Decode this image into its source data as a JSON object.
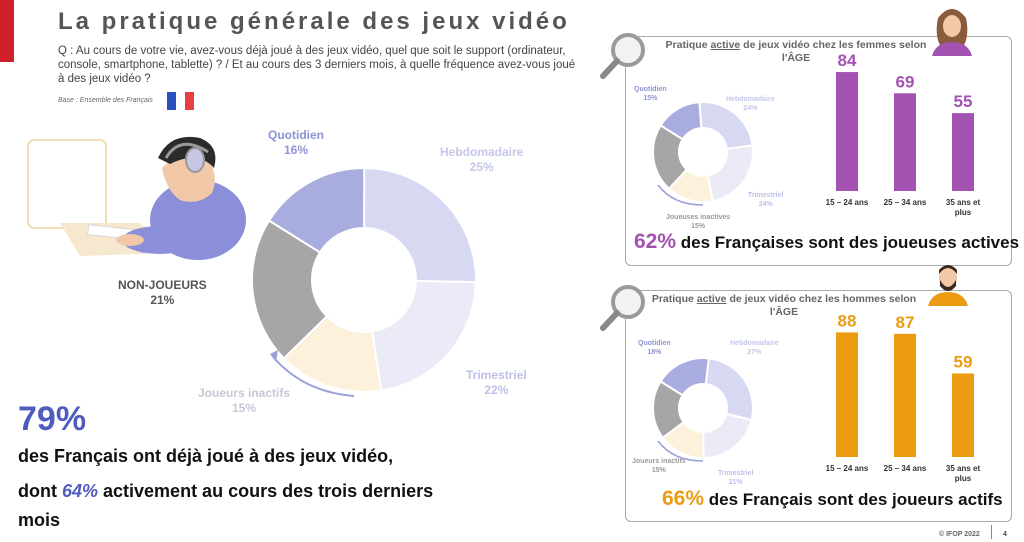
{
  "header": {
    "title": "La pratique générale des jeux vidéo",
    "question": "Q : Au cours de votre vie, avez-vous déjà joué à des jeux vidéo, quel que soit le support (ordinateur, console, smartphone, tablette) ? / Et au cours des 3 derniers mois, à quelle fréquence avez-vous joué à des jeux vidéo ?",
    "base": "Base : Ensemble des Français"
  },
  "nonplayers": {
    "label": "NON-JOUEURS",
    "value": "21%"
  },
  "main_labels": {
    "quotidien": {
      "label": "Quotidien",
      "value": "16%"
    },
    "hebdomadaire": {
      "label": "Hebdomadaire",
      "value": "25%"
    },
    "trimestriel": {
      "label": "Trimestriel",
      "value": "22%"
    },
    "inactifs": {
      "label": "Joueurs inactifs",
      "value": "15%"
    }
  },
  "headline": {
    "big": "79%",
    "line1": "des Français ont déjà joué à des jeux vidéo,",
    "line2_pre": "dont ",
    "line2_hl": "64%",
    "line2_post": " activement au cours des trois derniers",
    "line3": "mois"
  },
  "panel_f": {
    "title_pre": "Pratique ",
    "title_u": "active",
    "title_post": " de jeux vidéo chez les femmes selon",
    "title_line2": "l'ÂGE",
    "donut_labels": {
      "quotidien": "Quotidien",
      "quotidien_v": "15%",
      "hebdo": "Hebdomadaire",
      "hebdo_v": "24%",
      "trim": "Trimestriel",
      "trim_v": "24%",
      "inactifs": "Joueuses inactives",
      "inactifs_v": "15%"
    },
    "summary_pct": "62%",
    "summary_text": " des Françaises sont des joueuses actives"
  },
  "panel_m": {
    "title_pre": "Pratique ",
    "title_u": "active",
    "title_post": " de jeux vidéo chez les hommes selon",
    "title_line2": "l'ÂGE",
    "donut_labels": {
      "quotidien": "Quotidien",
      "quotidien_v": "18%",
      "hebdo": "Hebdomadaire",
      "hebdo_v": "27%",
      "trim": "Trimestriel",
      "trim_v": "21%",
      "inactifs": "Joueurs inactifs",
      "inactifs_v": "15%"
    },
    "summary_pct": "66%",
    "summary_text": " des Français sont des joueurs actifs"
  },
  "footer": {
    "copyright": "© IFOP 2022",
    "page": "4"
  },
  "colors": {
    "quotidien": "#a9acdf",
    "hebdomadaire": "#d7d9f2",
    "trimestriel": "#ebebf8",
    "inactifs": "#fdf1dc",
    "nonjoueurs": "#a6a6a6",
    "women": "#a352b2",
    "men": "#eb9c12",
    "accent": "#4f5bbd",
    "flag_blue": "#2a4fbf",
    "flag_red": "#e84040"
  },
  "chart_data": [
    {
      "type": "pie",
      "categories": [
        "Quotidien",
        "Hebdomadaire",
        "Trimestriel",
        "Joueurs inactifs",
        "NON-JOUEURS"
      ],
      "values": [
        16,
        25,
        22,
        15,
        21
      ]
    },
    {
      "type": "pie",
      "categories": [
        "Quotidien",
        "Hebdomadaire",
        "Trimestriel",
        "Joueuses inactives"
      ],
      "values": [
        15,
        24,
        24,
        15
      ]
    },
    {
      "type": "bar",
      "categories": [
        "15 – 24 ans",
        "25 – 34 ans",
        "35 ans et plus"
      ],
      "values": [
        84,
        69,
        55
      ]
    },
    {
      "type": "pie",
      "categories": [
        "Quotidien",
        "Hebdomadaire",
        "Trimestriel",
        "Joueurs inactifs"
      ],
      "values": [
        18,
        27,
        21,
        15
      ]
    },
    {
      "type": "bar",
      "categories": [
        "15 – 24 ans",
        "25 – 34 ans",
        "35 ans et plus"
      ],
      "values": [
        88,
        87,
        59
      ]
    }
  ]
}
